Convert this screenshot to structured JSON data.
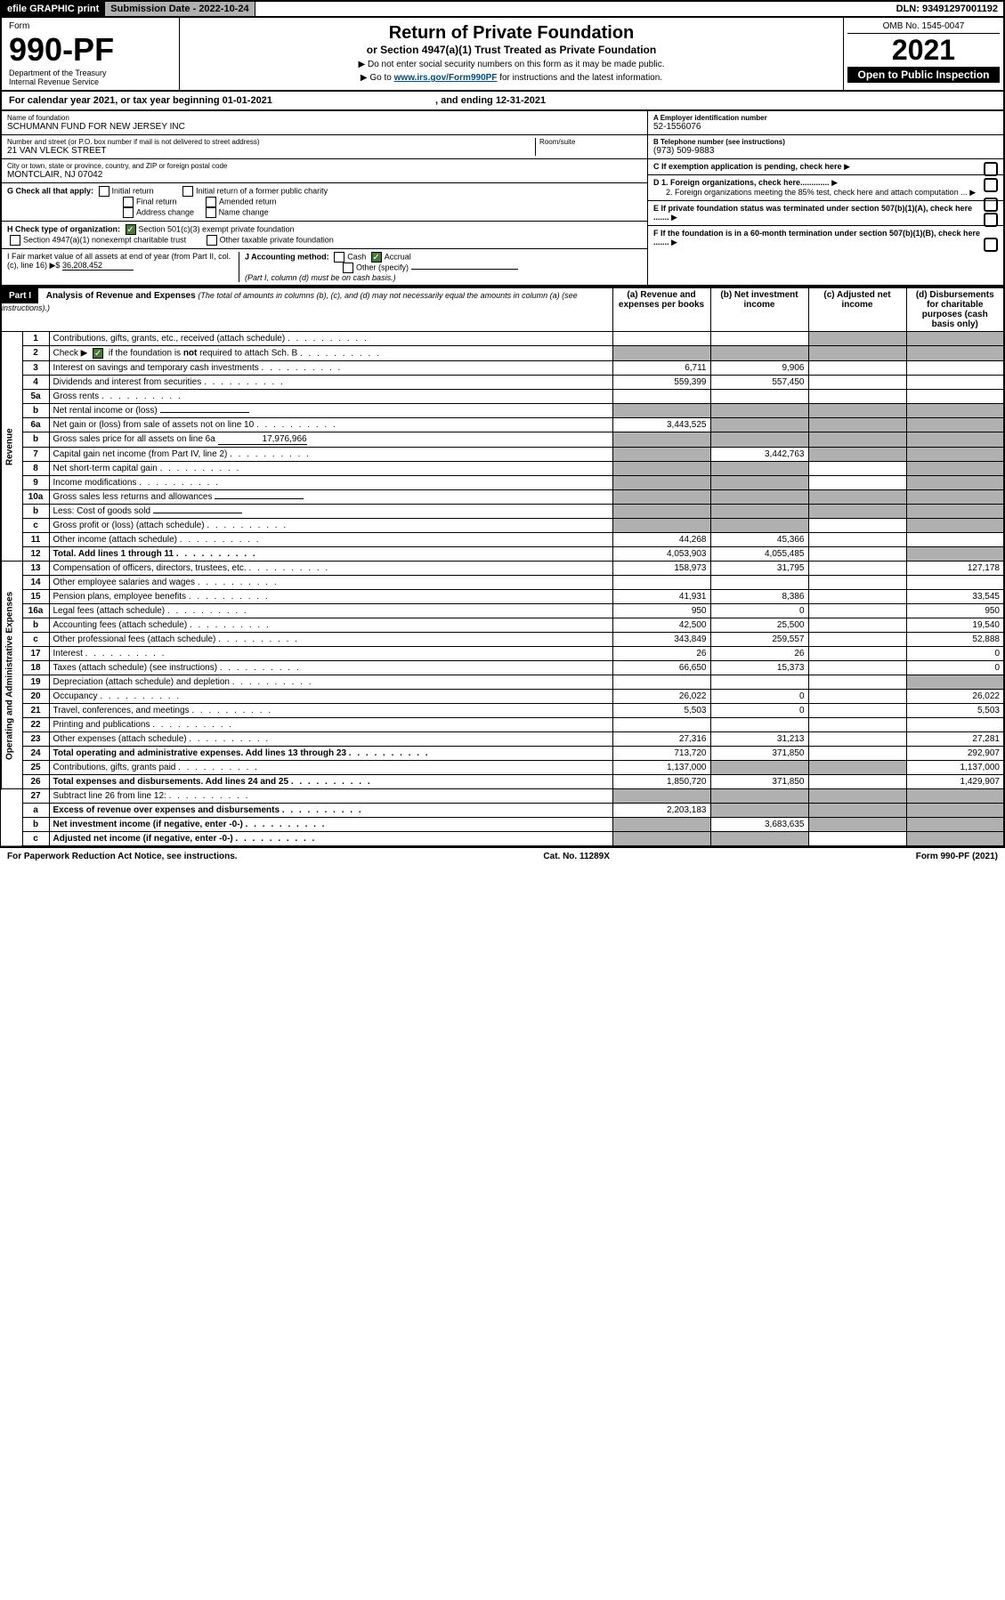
{
  "topbar": {
    "efile": "efile GRAPHIC print",
    "subdate_lbl": "Submission Date - 2022-10-24",
    "dln": "DLN: 93491297001192"
  },
  "header": {
    "form_lbl": "Form",
    "form_num": "990-PF",
    "dept": "Department of the Treasury",
    "irs": "Internal Revenue Service",
    "title": "Return of Private Foundation",
    "subtitle": "or Section 4947(a)(1) Trust Treated as Private Foundation",
    "note1": "▶ Do not enter social security numbers on this form as it may be made public.",
    "note2_pre": "▶ Go to ",
    "note2_link": "www.irs.gov/Form990PF",
    "note2_post": " for instructions and the latest information.",
    "omb": "OMB No. 1545-0047",
    "year": "2021",
    "open": "Open to Public Inspection"
  },
  "calrow": {
    "pre": "For calendar year 2021, or tax year beginning 01-01-2021",
    "mid": ", and ending 12-31-2021"
  },
  "info": {
    "name_lbl": "Name of foundation",
    "name": "SCHUMANN FUND FOR NEW JERSEY INC",
    "addr_lbl": "Number and street (or P.O. box number if mail is not delivered to street address)",
    "addr": "21 VAN VLECK STREET",
    "room_lbl": "Room/suite",
    "city_lbl": "City or town, state or province, country, and ZIP or foreign postal code",
    "city": "MONTCLAIR, NJ  07042",
    "ein_lbl": "A Employer identification number",
    "ein": "52-1556076",
    "phone_lbl": "B Telephone number (see instructions)",
    "phone": "(973) 509-9883",
    "c": "C If exemption application is pending, check here",
    "d1": "D 1. Foreign organizations, check here.............",
    "d2": "2. Foreign organizations meeting the 85% test, check here and attach computation ...",
    "e": "E If private foundation status was terminated under section 507(b)(1)(A), check here .......",
    "f": "F If the foundation is in a 60-month termination under section 507(b)(1)(B), check here ......."
  },
  "g": {
    "lbl": "G Check all that apply:",
    "o1": "Initial return",
    "o2": "Initial return of a former public charity",
    "o3": "Final return",
    "o4": "Amended return",
    "o5": "Address change",
    "o6": "Name change"
  },
  "h": {
    "lbl": "H Check type of organization:",
    "o1": "Section 501(c)(3) exempt private foundation",
    "o2": "Section 4947(a)(1) nonexempt charitable trust",
    "o3": "Other taxable private foundation"
  },
  "i": {
    "lbl": "I Fair market value of all assets at end of year (from Part II, col. (c), line 16) ▶$",
    "val": "36,208,452"
  },
  "j": {
    "lbl": "J Accounting method:",
    "o1": "Cash",
    "o2": "Accrual",
    "o3": "Other (specify)",
    "note": "(Part I, column (d) must be on cash basis.)"
  },
  "part1": {
    "title": "Part I",
    "heading": "Analysis of Revenue and Expenses",
    "heading_note": "(The total of amounts in columns (b), (c), and (d) may not necessarily equal the amounts in column (a) (see instructions).)",
    "col_a": "(a) Revenue and expenses per books",
    "col_b": "(b) Net investment income",
    "col_c": "(c) Adjusted net income",
    "col_d": "(d) Disbursements for charitable purposes (cash basis only)"
  },
  "side": {
    "rev": "Revenue",
    "exp": "Operating and Administrative Expenses"
  },
  "rows": [
    {
      "n": "1",
      "d": "Contributions, gifts, grants, etc., received (attach schedule)",
      "a": "",
      "b": "",
      "c": "s",
      "ds": "s"
    },
    {
      "n": "2",
      "d": "Check ▶ ☑ if the foundation is not required to attach Sch. B",
      "a": "s",
      "b": "s",
      "c": "s",
      "ds": "s",
      "dotsOff": true,
      "checkmark": true
    },
    {
      "n": "3",
      "d": "Interest on savings and temporary cash investments",
      "a": "6,711",
      "b": "9,906"
    },
    {
      "n": "4",
      "d": "Dividends and interest from securities",
      "a": "559,399",
      "b": "557,450"
    },
    {
      "n": "5a",
      "d": "Gross rents"
    },
    {
      "n": "b",
      "d": "Net rental income or (loss)",
      "inline": true,
      "a": "s",
      "b": "s",
      "c": "s",
      "ds": "s"
    },
    {
      "n": "6a",
      "d": "Net gain or (loss) from sale of assets not on line 10",
      "a": "3,443,525",
      "b": "s",
      "c": "s",
      "ds": "s"
    },
    {
      "n": "b",
      "d": "Gross sales price for all assets on line 6a",
      "inline": true,
      "inlineVal": "17,976,966",
      "a": "s",
      "b": "s",
      "c": "s",
      "ds": "s"
    },
    {
      "n": "7",
      "d": "Capital gain net income (from Part IV, line 2)",
      "a": "s",
      "b": "3,442,763",
      "c": "s",
      "ds": "s"
    },
    {
      "n": "8",
      "d": "Net short-term capital gain",
      "a": "s",
      "b": "s",
      "ds": "s"
    },
    {
      "n": "9",
      "d": "Income modifications",
      "a": "s",
      "b": "s",
      "ds": "s"
    },
    {
      "n": "10a",
      "d": "Gross sales less returns and allowances",
      "inline": true,
      "a": "s",
      "b": "s",
      "c": "s",
      "ds": "s"
    },
    {
      "n": "b",
      "d": "Less: Cost of goods sold",
      "inline": true,
      "a": "s",
      "b": "s",
      "c": "s",
      "ds": "s"
    },
    {
      "n": "c",
      "d": "Gross profit or (loss) (attach schedule)",
      "a": "s",
      "b": "s",
      "ds": "s"
    },
    {
      "n": "11",
      "d": "Other income (attach schedule)",
      "a": "44,268",
      "b": "45,366"
    },
    {
      "n": "12",
      "d": "Total. Add lines 1 through 11",
      "bold": true,
      "a": "4,053,903",
      "b": "4,055,485",
      "ds": "s"
    },
    {
      "n": "13",
      "d": "Compensation of officers, directors, trustees, etc.",
      "a": "158,973",
      "b": "31,795",
      "dd": "127,178",
      "sec": "exp"
    },
    {
      "n": "14",
      "d": "Other employee salaries and wages"
    },
    {
      "n": "15",
      "d": "Pension plans, employee benefits",
      "a": "41,931",
      "b": "8,386",
      "dd": "33,545"
    },
    {
      "n": "16a",
      "d": "Legal fees (attach schedule)",
      "a": "950",
      "b": "0",
      "dd": "950"
    },
    {
      "n": "b",
      "d": "Accounting fees (attach schedule)",
      "a": "42,500",
      "b": "25,500",
      "dd": "19,540"
    },
    {
      "n": "c",
      "d": "Other professional fees (attach schedule)",
      "a": "343,849",
      "b": "259,557",
      "dd": "52,888"
    },
    {
      "n": "17",
      "d": "Interest",
      "a": "26",
      "b": "26",
      "dd": "0"
    },
    {
      "n": "18",
      "d": "Taxes (attach schedule) (see instructions)",
      "a": "66,650",
      "b": "15,373",
      "dd": "0"
    },
    {
      "n": "19",
      "d": "Depreciation (attach schedule) and depletion",
      "ds": "s"
    },
    {
      "n": "20",
      "d": "Occupancy",
      "a": "26,022",
      "b": "0",
      "dd": "26,022"
    },
    {
      "n": "21",
      "d": "Travel, conferences, and meetings",
      "a": "5,503",
      "b": "0",
      "dd": "5,503"
    },
    {
      "n": "22",
      "d": "Printing and publications"
    },
    {
      "n": "23",
      "d": "Other expenses (attach schedule)",
      "a": "27,316",
      "b": "31,213",
      "dd": "27,281"
    },
    {
      "n": "24",
      "d": "Total operating and administrative expenses. Add lines 13 through 23",
      "bold": true,
      "a": "713,720",
      "b": "371,850",
      "dd": "292,907"
    },
    {
      "n": "25",
      "d": "Contributions, gifts, grants paid",
      "a": "1,137,000",
      "b": "s",
      "c": "s",
      "dd": "1,137,000"
    },
    {
      "n": "26",
      "d": "Total expenses and disbursements. Add lines 24 and 25",
      "bold": true,
      "a": "1,850,720",
      "b": "371,850",
      "dd": "1,429,907"
    },
    {
      "n": "27",
      "d": "Subtract line 26 from line 12:",
      "a": "s",
      "b": "s",
      "c": "s",
      "ds": "s",
      "sec": "end"
    },
    {
      "n": "a",
      "d": "Excess of revenue over expenses and disbursements",
      "bold": true,
      "a": "2,203,183",
      "b": "s",
      "c": "s",
      "ds": "s"
    },
    {
      "n": "b",
      "d": "Net investment income (if negative, enter -0-)",
      "bold": true,
      "a": "s",
      "b": "3,683,635",
      "c": "s",
      "ds": "s"
    },
    {
      "n": "c",
      "d": "Adjusted net income (if negative, enter -0-)",
      "bold": true,
      "a": "s",
      "b": "s",
      "ds": "s"
    }
  ],
  "footer": {
    "left": "For Paperwork Reduction Act Notice, see instructions.",
    "mid": "Cat. No. 11289X",
    "right": "Form 990-PF (2021)"
  }
}
